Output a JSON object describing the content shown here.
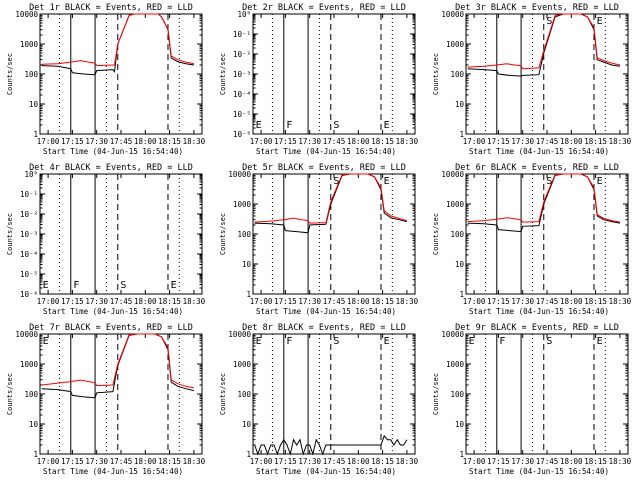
{
  "chart_data": [
    {
      "type": "line",
      "title": "Det 1r BLACK = Events, RED = LLD",
      "xlabel": "Start Time (04-Jun-15 16:54:40)",
      "ylabel": "Counts/sec",
      "yscale": "log",
      "xlim": [
        "16:55",
        "18:35"
      ],
      "ylim": [
        1,
        10000
      ],
      "x_tick_labels": [
        "17:00",
        "17:15",
        "17:30",
        "17:45",
        "18:00",
        "18:15",
        "18:30"
      ],
      "y_tick_labels": [
        "1",
        "10",
        "100",
        "1000",
        "10000"
      ],
      "markers": [],
      "series": [
        {
          "name": "Events",
          "color": "#000000",
          "x": [
            "16:56",
            "17:06",
            "17:14",
            "17:15",
            "17:22",
            "17:29",
            "17:30",
            "17:40",
            "17:41",
            "17:43",
            "17:50",
            "17:53",
            "17:55",
            "17:58",
            "18:00",
            "18:03",
            "18:06",
            "18:08",
            "18:10",
            "18:12",
            "18:14",
            "18:16",
            "18:20",
            "18:25",
            "18:30"
          ],
          "y": [
            190,
            180,
            150,
            110,
            100,
            95,
            130,
            140,
            120,
            1000,
            9000,
            10000,
            10000,
            10000,
            10000,
            10000,
            10000,
            10000,
            8000,
            5000,
            3000,
            340,
            260,
            220,
            200
          ]
        },
        {
          "name": "LLD",
          "color": "#ff0000",
          "x": [
            "16:56",
            "17:06",
            "17:14",
            "17:20",
            "17:25",
            "17:29",
            "17:30",
            "17:40",
            "17:41",
            "17:43",
            "17:50",
            "17:53",
            "17:55",
            "17:58",
            "18:00",
            "18:03",
            "18:06",
            "18:08",
            "18:10",
            "18:12",
            "18:14",
            "18:16",
            "18:20",
            "18:25",
            "18:30"
          ],
          "y": [
            210,
            220,
            250,
            280,
            250,
            230,
            190,
            200,
            200,
            1000,
            9000,
            10000,
            10000,
            10000,
            10000,
            10000,
            10000,
            10000,
            8000,
            5000,
            3000,
            400,
            300,
            250,
            220
          ]
        }
      ]
    },
    {
      "type": "line",
      "title": "Det 2r BLACK = Events, RED = LLD",
      "xlabel": "Start Time (04-Jun-15 16:54:40)",
      "ylabel": "Counts/sec",
      "yscale": "log",
      "xlim": [
        "16:55",
        "18:35"
      ],
      "ylim": [
        1e-06,
        1
      ],
      "x_tick_labels": [
        "17:00",
        "17:15",
        "17:30",
        "17:45",
        "18:00",
        "18:15",
        "18:30"
      ],
      "y_tick_labels": [
        "10⁻⁶",
        "10⁻⁵",
        "10⁻⁴",
        "10⁻³",
        "10⁻²",
        "10⁻¹",
        "10⁰"
      ],
      "markers": [
        "E",
        "F",
        "S",
        "E"
      ],
      "series": []
    },
    {
      "type": "line",
      "title": "Det 3r BLACK = Events, RED = LLD",
      "xlabel": "Start Time (04-Jun-15 16:54:40)",
      "ylabel": "Counts/sec",
      "yscale": "log",
      "xlim": [
        "16:55",
        "18:35"
      ],
      "ylim": [
        1,
        10000
      ],
      "x_tick_labels": [
        "17:00",
        "17:15",
        "17:30",
        "17:45",
        "18:00",
        "18:15",
        "18:30"
      ],
      "y_tick_labels": [
        "1",
        "10",
        "100",
        "1000",
        "10000"
      ],
      "markers": [
        "S",
        "E"
      ],
      "series": [
        {
          "name": "Events",
          "color": "#000000",
          "x": [
            "16:56",
            "17:06",
            "17:14",
            "17:15",
            "17:22",
            "17:29",
            "17:30",
            "17:40",
            "17:43",
            "17:50",
            "17:55",
            "18:00",
            "18:06",
            "18:10",
            "18:14",
            "18:16",
            "18:20",
            "18:25",
            "18:30"
          ],
          "y": [
            150,
            140,
            130,
            100,
            90,
            85,
            90,
            95,
            500,
            8000,
            10000,
            10000,
            10000,
            8000,
            3000,
            300,
            250,
            200,
            180
          ]
        },
        {
          "name": "LLD",
          "color": "#ff0000",
          "x": [
            "16:56",
            "17:06",
            "17:14",
            "17:20",
            "17:25",
            "17:29",
            "17:30",
            "17:40",
            "17:43",
            "17:50",
            "17:55",
            "18:00",
            "18:06",
            "18:10",
            "18:14",
            "18:16",
            "18:20",
            "18:25",
            "18:30"
          ],
          "y": [
            170,
            180,
            200,
            220,
            200,
            190,
            150,
            160,
            600,
            9000,
            10000,
            10000,
            10000,
            8000,
            3500,
            350,
            280,
            230,
            200
          ]
        }
      ]
    },
    {
      "type": "line",
      "title": "Det 4r BLACK = Events, RED = LLD",
      "xlabel": "Start Time (04-Jun-15 16:54:40)",
      "ylabel": "Counts/sec",
      "yscale": "log",
      "xlim": [
        "16:55",
        "18:35"
      ],
      "ylim": [
        1e-06,
        1
      ],
      "x_tick_labels": [
        "17:00",
        "17:15",
        "17:30",
        "17:45",
        "18:00",
        "18:15",
        "18:30"
      ],
      "y_tick_labels": [
        "10⁻⁶",
        "10⁻⁵",
        "10⁻⁴",
        "10⁻³",
        "10⁻²",
        "10⁻¹",
        "10⁰"
      ],
      "markers": [
        "E",
        "F",
        "S",
        "E"
      ],
      "series": []
    },
    {
      "type": "line",
      "title": "Det 5r BLACK = Events, RED = LLD",
      "xlabel": "Start Time (04-Jun-15 16:54:40)",
      "ylabel": "Counts/sec",
      "yscale": "log",
      "xlim": [
        "16:55",
        "18:35"
      ],
      "ylim": [
        1,
        10000
      ],
      "x_tick_labels": [
        "17:00",
        "17:15",
        "17:30",
        "17:45",
        "18:00",
        "18:15",
        "18:30"
      ],
      "y_tick_labels": [
        "1",
        "10",
        "100",
        "1000",
        "10000"
      ],
      "markers": [
        "S",
        "E"
      ],
      "series": [
        {
          "name": "Events",
          "color": "#000000",
          "x": [
            "16:56",
            "17:06",
            "17:14",
            "17:15",
            "17:22",
            "17:29",
            "17:30",
            "17:40",
            "17:43",
            "17:50",
            "17:55",
            "18:00",
            "18:06",
            "18:10",
            "18:14",
            "18:16",
            "18:20",
            "18:25",
            "18:30"
          ],
          "y": [
            230,
            220,
            200,
            130,
            120,
            110,
            200,
            210,
            1000,
            9000,
            10000,
            10000,
            10000,
            8000,
            3000,
            500,
            350,
            300,
            260
          ]
        },
        {
          "name": "LLD",
          "color": "#ff0000",
          "x": [
            "16:56",
            "17:06",
            "17:14",
            "17:20",
            "17:25",
            "17:29",
            "17:30",
            "17:40",
            "17:43",
            "17:50",
            "17:55",
            "18:00",
            "18:06",
            "18:10",
            "18:14",
            "18:16",
            "18:20",
            "18:25",
            "18:30"
          ],
          "y": [
            250,
            270,
            300,
            340,
            300,
            280,
            230,
            240,
            1200,
            9500,
            10000,
            10000,
            10000,
            8000,
            3500,
            600,
            400,
            330,
            280
          ]
        }
      ]
    },
    {
      "type": "line",
      "title": "Det 6r BLACK = Events, RED = LLD",
      "xlabel": "Start Time (04-Jun-15 16:54:40)",
      "ylabel": "Counts/sec",
      "yscale": "log",
      "xlim": [
        "16:55",
        "18:35"
      ],
      "ylim": [
        1,
        10000
      ],
      "x_tick_labels": [
        "17:00",
        "17:15",
        "17:30",
        "17:45",
        "18:00",
        "18:15",
        "18:30"
      ],
      "y_tick_labels": [
        "1",
        "10",
        "100",
        "1000",
        "10000"
      ],
      "markers": [
        "S",
        "E"
      ],
      "series": [
        {
          "name": "Events",
          "color": "#000000",
          "x": [
            "16:56",
            "17:06",
            "17:14",
            "17:15",
            "17:22",
            "17:29",
            "17:30",
            "17:40",
            "17:43",
            "17:50",
            "17:55",
            "18:00",
            "18:06",
            "18:10",
            "18:14",
            "18:16",
            "18:20",
            "18:25",
            "18:30"
          ],
          "y": [
            230,
            220,
            200,
            140,
            130,
            120,
            180,
            190,
            1000,
            9000,
            10000,
            10000,
            10000,
            8000,
            3000,
            400,
            300,
            260,
            230
          ]
        },
        {
          "name": "LLD",
          "color": "#ff0000",
          "x": [
            "16:56",
            "17:06",
            "17:14",
            "17:20",
            "17:25",
            "17:29",
            "17:30",
            "17:40",
            "17:43",
            "17:50",
            "17:55",
            "18:00",
            "18:06",
            "18:10",
            "18:14",
            "18:16",
            "18:20",
            "18:25",
            "18:30"
          ],
          "y": [
            260,
            280,
            310,
            350,
            320,
            300,
            250,
            260,
            1200,
            9500,
            10000,
            10000,
            10000,
            8000,
            3500,
            450,
            330,
            280,
            250
          ]
        }
      ]
    },
    {
      "type": "line",
      "title": "Det 7r BLACK = Events, RED = LLD",
      "xlabel": "Start Time (04-Jun-15 16:54:40)",
      "ylabel": "Counts/sec",
      "yscale": "log",
      "xlim": [
        "16:55",
        "18:35"
      ],
      "ylim": [
        1,
        10000
      ],
      "x_tick_labels": [
        "17:00",
        "17:15",
        "17:30",
        "17:45",
        "18:00",
        "18:15",
        "18:30"
      ],
      "y_tick_labels": [
        "1",
        "10",
        "100",
        "1000",
        "10000"
      ],
      "markers": [
        "E"
      ],
      "series": [
        {
          "name": "Events",
          "color": "#000000",
          "x": [
            "16:56",
            "17:06",
            "17:14",
            "17:15",
            "17:22",
            "17:29",
            "17:30",
            "17:40",
            "17:43",
            "17:50",
            "17:55",
            "18:00",
            "18:06",
            "18:10",
            "18:14",
            "18:16",
            "18:20",
            "18:25",
            "18:30"
          ],
          "y": [
            150,
            140,
            120,
            90,
            80,
            75,
            110,
            120,
            900,
            9000,
            10000,
            10000,
            10000,
            8000,
            3000,
            250,
            180,
            150,
            130
          ]
        },
        {
          "name": "LLD",
          "color": "#ff0000",
          "x": [
            "16:56",
            "17:06",
            "17:14",
            "17:20",
            "17:25",
            "17:29",
            "17:30",
            "17:40",
            "17:43",
            "17:50",
            "17:55",
            "18:00",
            "18:06",
            "18:10",
            "18:14",
            "18:16",
            "18:20",
            "18:25",
            "18:30"
          ],
          "y": [
            200,
            230,
            260,
            290,
            260,
            240,
            190,
            200,
            1000,
            9500,
            10000,
            10000,
            10000,
            8000,
            3500,
            300,
            220,
            180,
            160
          ]
        }
      ]
    },
    {
      "type": "line",
      "title": "Det 8r BLACK = Events, RED = LLD",
      "xlabel": "Start Time (04-Jun-15 16:54:40)",
      "ylabel": "Counts/sec",
      "yscale": "log",
      "xlim": [
        "16:55",
        "18:35"
      ],
      "ylim": [
        1,
        10000
      ],
      "x_tick_labels": [
        "17:00",
        "17:15",
        "17:30",
        "17:45",
        "18:00",
        "18:15",
        "18:30"
      ],
      "y_tick_labels": [
        "1",
        "10",
        "100",
        "1000",
        "10000"
      ],
      "markers": [
        "E",
        "F",
        "S",
        "E"
      ],
      "series": [
        {
          "name": "Events",
          "color": "#000000",
          "x": [
            "16:56",
            "16:58",
            "17:00",
            "17:02",
            "17:04",
            "17:06",
            "17:08",
            "17:10",
            "17:12",
            "17:14",
            "17:16",
            "17:18",
            "17:20",
            "17:22",
            "17:24",
            "17:26",
            "17:28",
            "17:30",
            "17:32",
            "17:34",
            "17:36",
            "17:38",
            "17:40",
            "17:42",
            "18:14",
            "18:16",
            "18:18",
            "18:20",
            "18:22",
            "18:24",
            "18:26",
            "18:28",
            "18:30"
          ],
          "y": [
            2,
            1,
            2,
            2,
            1,
            2,
            2,
            1,
            2,
            3,
            2,
            1,
            3,
            2,
            3,
            1,
            2,
            2,
            1,
            3,
            2,
            1,
            2,
            2,
            2,
            4,
            3,
            3,
            2,
            3,
            2,
            2,
            3
          ]
        }
      ]
    },
    {
      "type": "line",
      "title": "Det 9r BLACK = Events, RED = LLD",
      "xlabel": "Start Time (04-Jun-15 16:54:40)",
      "ylabel": "Counts/sec",
      "yscale": "log",
      "xlim": [
        "16:55",
        "18:35"
      ],
      "ylim": [
        1,
        10000
      ],
      "x_tick_labels": [
        "17:00",
        "17:15",
        "17:30",
        "17:45",
        "18:00",
        "18:15",
        "18:30"
      ],
      "y_tick_labels": [
        "1",
        "10",
        "100",
        "1000",
        "10000"
      ],
      "markers": [
        "E",
        "F",
        "S",
        "E"
      ],
      "series": []
    }
  ]
}
